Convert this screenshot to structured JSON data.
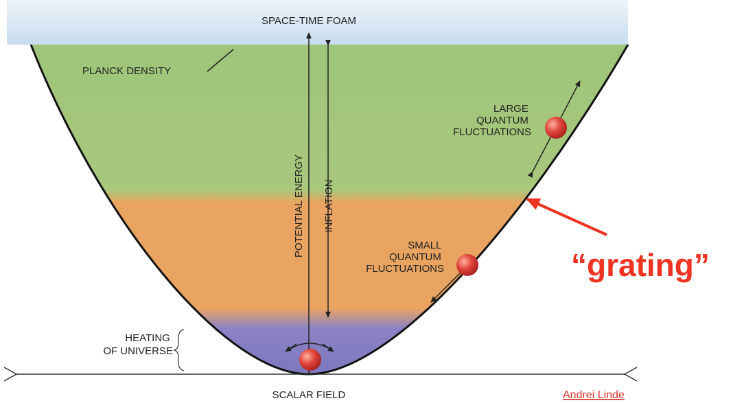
{
  "labels": {
    "space_time_foam": "SPACE-TIME FOAM",
    "planck_density": "PLANCK DENSITY",
    "large_fluctuations": [
      "LARGE",
      "QUANTUM",
      "FLUCTUATIONS"
    ],
    "potential_energy": "POTENTIAL ENERGY",
    "inflation": "INFLATION",
    "small_fluctuations": [
      "SMALL",
      "QUANTUM",
      "FLUCTUATIONS"
    ],
    "heating": [
      "HEATING",
      "OF UNIVERSE"
    ],
    "scalar_field": "SCALAR FIELD",
    "credit": "Andrei Linde",
    "annotation": "“grating”"
  }
}
